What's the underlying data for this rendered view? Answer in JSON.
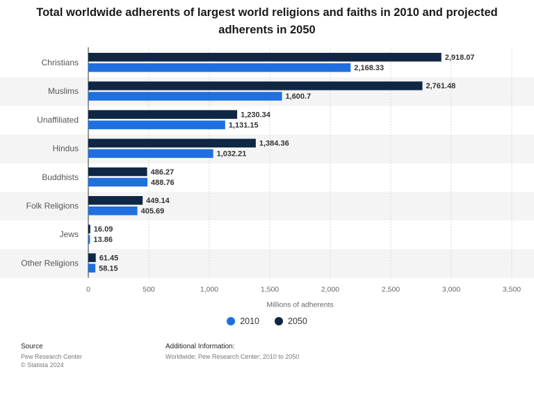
{
  "title": "Total worldwide adherents of largest world religions and faiths in 2010 and projected adherents in 2050",
  "footer": {
    "source_heading": "Source",
    "source_line1": "Pew Research Center",
    "source_line2": "© Statista 2024",
    "info_heading": "Additional Information:",
    "info_line": "Worldwide; Pew Research Center; 2010 to 2050"
  },
  "colors": {
    "2010": "#1f6fe0",
    "2050": "#0f2744"
  },
  "chart_data": {
    "type": "bar",
    "orientation": "horizontal",
    "title": "Total worldwide adherents of largest world religions and faiths in 2010 and projected adherents in 2050",
    "xlabel": "Millions of adherents",
    "ylabel": "",
    "xlim": [
      0,
      3500
    ],
    "xticks": [
      0,
      500,
      1000,
      1500,
      2000,
      2500,
      3000,
      3500
    ],
    "xtick_labels": [
      "0",
      "500",
      "1,000",
      "1,500",
      "2,000",
      "2,500",
      "3,000",
      "3,500"
    ],
    "grid": true,
    "legend_position": "bottom",
    "categories": [
      "Christians",
      "Muslims",
      "Unaffiliated",
      "Hindus",
      "Buddhists",
      "Folk Religions",
      "Jews",
      "Other Religions"
    ],
    "series": [
      {
        "name": "2050",
        "values": [
          2918.07,
          2761.48,
          1230.34,
          1384.36,
          486.27,
          449.14,
          16.09,
          61.45
        ],
        "labels": [
          "2,918.07",
          "2,761.48",
          "1,230.34",
          "1,384.36",
          "486.27",
          "449.14",
          "16.09",
          "61.45"
        ]
      },
      {
        "name": "2010",
        "values": [
          2168.33,
          1600.7,
          1131.15,
          1032.21,
          488.76,
          405.69,
          13.86,
          58.15
        ],
        "labels": [
          "2,168.33",
          "1,600.7",
          "1,131.15",
          "1,032.21",
          "488.76",
          "405.69",
          "13.86",
          "58.15"
        ]
      }
    ],
    "legend_order": [
      "2010",
      "2050"
    ]
  }
}
